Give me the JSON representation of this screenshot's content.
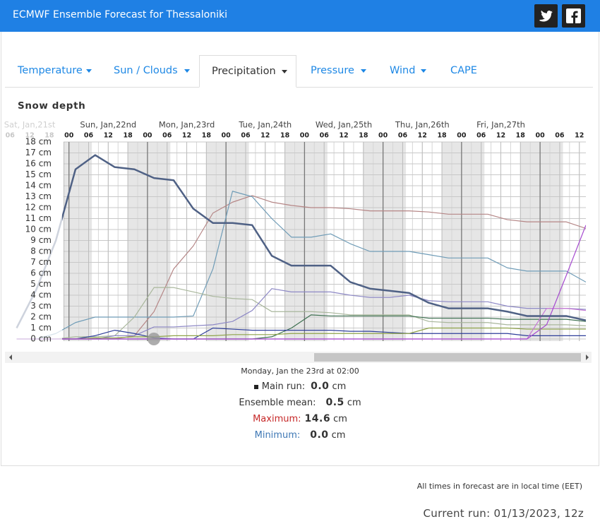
{
  "header": {
    "title": "ECMWF Ensemble Forecast for Thessaloniki"
  },
  "tabs": [
    "Temperature",
    "Sun / Clouds",
    "Precipitation",
    "Pressure",
    "Wind",
    "CAPE"
  ],
  "chart_data": {
    "type": "line",
    "title": "Snow depth",
    "day_labels": [
      {
        "value": -12,
        "label": "Sat, Jan,21st"
      },
      {
        "value": 12,
        "label": "Sun, Jan,22nd"
      },
      {
        "value": 36,
        "label": "Mon, Jan,23rd"
      },
      {
        "value": 60,
        "label": "Tue, Jan,24th"
      },
      {
        "value": 84,
        "label": "Wed, Jan,25th"
      },
      {
        "value": 108,
        "label": "Thu, Jan,26th"
      },
      {
        "value": 132,
        "label": "Fri, Jan,27th"
      }
    ],
    "x": [
      -16,
      -10,
      -4,
      2,
      8,
      14,
      20,
      26,
      32,
      38,
      44,
      50,
      56,
      62,
      68,
      74,
      80,
      86,
      92,
      98,
      104,
      110,
      116,
      122,
      128,
      134,
      140,
      146,
      152,
      158
    ],
    "xlim": [
      -20,
      158
    ],
    "xticks": [
      {
        "value": -18,
        "label": "06"
      },
      {
        "value": -12,
        "label": "12"
      },
      {
        "value": -6,
        "label": "18"
      },
      {
        "value": 0,
        "label": "00"
      },
      {
        "value": 6,
        "label": "06"
      },
      {
        "value": 12,
        "label": "12"
      },
      {
        "value": 18,
        "label": "18"
      },
      {
        "value": 24,
        "label": "00"
      },
      {
        "value": 30,
        "label": "06"
      },
      {
        "value": 36,
        "label": "12"
      },
      {
        "value": 42,
        "label": "18"
      },
      {
        "value": 48,
        "label": "00"
      },
      {
        "value": 54,
        "label": "06"
      },
      {
        "value": 60,
        "label": "12"
      },
      {
        "value": 66,
        "label": "18"
      },
      {
        "value": 72,
        "label": "00"
      },
      {
        "value": 78,
        "label": "06"
      },
      {
        "value": 84,
        "label": "12"
      },
      {
        "value": 90,
        "label": "18"
      },
      {
        "value": 96,
        "label": "00"
      },
      {
        "value": 102,
        "label": "06"
      },
      {
        "value": 108,
        "label": "12"
      },
      {
        "value": 114,
        "label": "18"
      },
      {
        "value": 120,
        "label": "00"
      },
      {
        "value": 126,
        "label": "06"
      },
      {
        "value": 132,
        "label": "12"
      },
      {
        "value": 138,
        "label": "18"
      },
      {
        "value": 144,
        "label": "00"
      },
      {
        "value": 150,
        "label": "06"
      },
      {
        "value": 156,
        "label": "12"
      }
    ],
    "ylim": [
      0,
      18
    ],
    "yticks": [
      {
        "value": 0,
        "label": "0 cm"
      },
      {
        "value": 1,
        "label": "1 cm"
      },
      {
        "value": 2,
        "label": "2 cm"
      },
      {
        "value": 3,
        "label": "3 cm"
      },
      {
        "value": 4,
        "label": "4 cm"
      },
      {
        "value": 5,
        "label": "5 cm"
      },
      {
        "value": 6,
        "label": "6 cm"
      },
      {
        "value": 7,
        "label": "7 cm"
      },
      {
        "value": 8,
        "label": "8 cm"
      },
      {
        "value": 9,
        "label": "9 cm"
      },
      {
        "value": 10,
        "label": "10 cm"
      },
      {
        "value": 11,
        "label": "11 cm"
      },
      {
        "value": 12,
        "label": "12 cm"
      },
      {
        "value": 13,
        "label": "13 cm"
      },
      {
        "value": 14,
        "label": "14 cm"
      },
      {
        "value": 15,
        "label": "15 cm"
      },
      {
        "value": 16,
        "label": "16 cm"
      },
      {
        "value": 17,
        "label": "17 cm"
      },
      {
        "value": 18,
        "label": "18 cm"
      }
    ],
    "grid": true,
    "series": [
      {
        "color": "#b58686",
        "values": [
          0,
          0,
          0,
          0,
          0,
          0,
          0.3,
          2.5,
          6.4,
          8.5,
          11.5,
          12.5,
          13.1,
          12.5,
          12.2,
          12.0,
          12.0,
          11.9,
          11.7,
          11.7,
          11.7,
          11.6,
          11.4,
          11.4,
          11.4,
          10.9,
          10.7,
          10.7,
          10.7,
          10.1
        ]
      },
      {
        "color": "#6f9cb7",
        "values": [
          0,
          0,
          0.5,
          1.5,
          2.0,
          2.0,
          2.0,
          2.0,
          2.0,
          2.1,
          6.4,
          13.5,
          13.0,
          11.0,
          9.3,
          9.3,
          9.6,
          8.7,
          8.0,
          8.0,
          8.0,
          7.7,
          7.4,
          7.4,
          7.4,
          6.5,
          6.2,
          6.2,
          6.2,
          5.2
        ]
      },
      {
        "color": "#a9b79c",
        "values": [
          0,
          0,
          0,
          0.2,
          0.2,
          0.3,
          2.0,
          4.7,
          4.7,
          4.3,
          3.9,
          3.7,
          3.6,
          2.5,
          2.5,
          2.5,
          2.4,
          2.2,
          2.2,
          2.2,
          2.2,
          1.6,
          1.5,
          1.5,
          1.5,
          1.3,
          1.3,
          1.3,
          1.3,
          1.2
        ]
      },
      {
        "color": "#8e89c6",
        "values": [
          0,
          0,
          0,
          0,
          0,
          0.3,
          0.3,
          1.1,
          1.1,
          1.2,
          1.3,
          1.6,
          2.6,
          4.6,
          4.3,
          4.3,
          4.3,
          4.0,
          3.8,
          3.8,
          4.0,
          3.5,
          3.4,
          3.4,
          3.4,
          3.0,
          2.8,
          2.8,
          2.8,
          2.7
        ]
      },
      {
        "color": "#3d7050",
        "values": [
          0,
          0,
          0,
          0,
          0,
          0,
          0,
          0,
          0,
          0,
          0,
          0,
          0,
          0.2,
          1.0,
          2.2,
          2.1,
          2.1,
          2.1,
          2.1,
          2.1,
          1.9,
          1.9,
          1.9,
          1.9,
          1.8,
          1.8,
          1.8,
          1.8,
          1.6
        ]
      },
      {
        "color": "#2f3f9a",
        "values": [
          0,
          0,
          0,
          0,
          0.3,
          0.8,
          0.5,
          0.1,
          0,
          0,
          1.0,
          0.9,
          0.8,
          0.8,
          0.8,
          0.8,
          0.8,
          0.7,
          0.7,
          0.6,
          0.5,
          0.5,
          0.5,
          0.5,
          0.5,
          0.5,
          0.3,
          0.3,
          0.3,
          0.3
        ]
      },
      {
        "color": "#8fa34a",
        "values": [
          0,
          0,
          0,
          0,
          0.1,
          0.1,
          0.2,
          0.2,
          0.3,
          0.3,
          0.3,
          0.4,
          0.4,
          0.4,
          0.5,
          0.5,
          0.5,
          0.5,
          0.5,
          0.5,
          0.5,
          1.0,
          1.0,
          1.0,
          1.0,
          1.0,
          0.9,
          0.9,
          0.9,
          0.9
        ]
      },
      {
        "color": "#c77ad6",
        "values": [
          0,
          0,
          0,
          0,
          0,
          0,
          0,
          0,
          0,
          0,
          0,
          0,
          0,
          0,
          0,
          0,
          0,
          0,
          0,
          0,
          0,
          0,
          0,
          0,
          0,
          0,
          0,
          2.8,
          2.8,
          2.6
        ]
      },
      {
        "color": "#a64bd0",
        "values": [
          0,
          0,
          0,
          0,
          0,
          0,
          0,
          0,
          0,
          0,
          0,
          0,
          0,
          0,
          0,
          0,
          0,
          0,
          0,
          0,
          0,
          0,
          0,
          0,
          0,
          0,
          0,
          1.3,
          5.8,
          10.4
        ]
      },
      {
        "color": "#4f6185",
        "line_width": 2.5,
        "values": [
          1,
          4.5,
          9,
          15.5,
          16.8,
          15.7,
          15.5,
          14.7,
          14.5,
          11.9,
          10.6,
          10.6,
          10.4,
          7.6,
          6.7,
          6.7,
          6.7,
          5.2,
          4.6,
          4.4,
          4.2,
          3.3,
          2.8,
          2.8,
          2.8,
          2.5,
          2.1,
          2.1,
          2.1,
          1.7
        ]
      }
    ]
  },
  "tooltip": {
    "time": "Monday, Jan the 23rd at 02:00",
    "rows": [
      {
        "label": "Main run:",
        "value": "0.0",
        "unit": "cm"
      },
      {
        "label": "Ensemble mean:",
        "value": "0.5",
        "unit": "cm"
      },
      {
        "label": "Maximum:",
        "value": "14.6",
        "unit": "cm"
      },
      {
        "label": "Minimum:",
        "value": "0.0",
        "unit": "cm"
      }
    ]
  },
  "footer": {
    "note": "All times in forecast are in local time (EET)",
    "run": "Current run: 01/13/2023, 12z"
  }
}
